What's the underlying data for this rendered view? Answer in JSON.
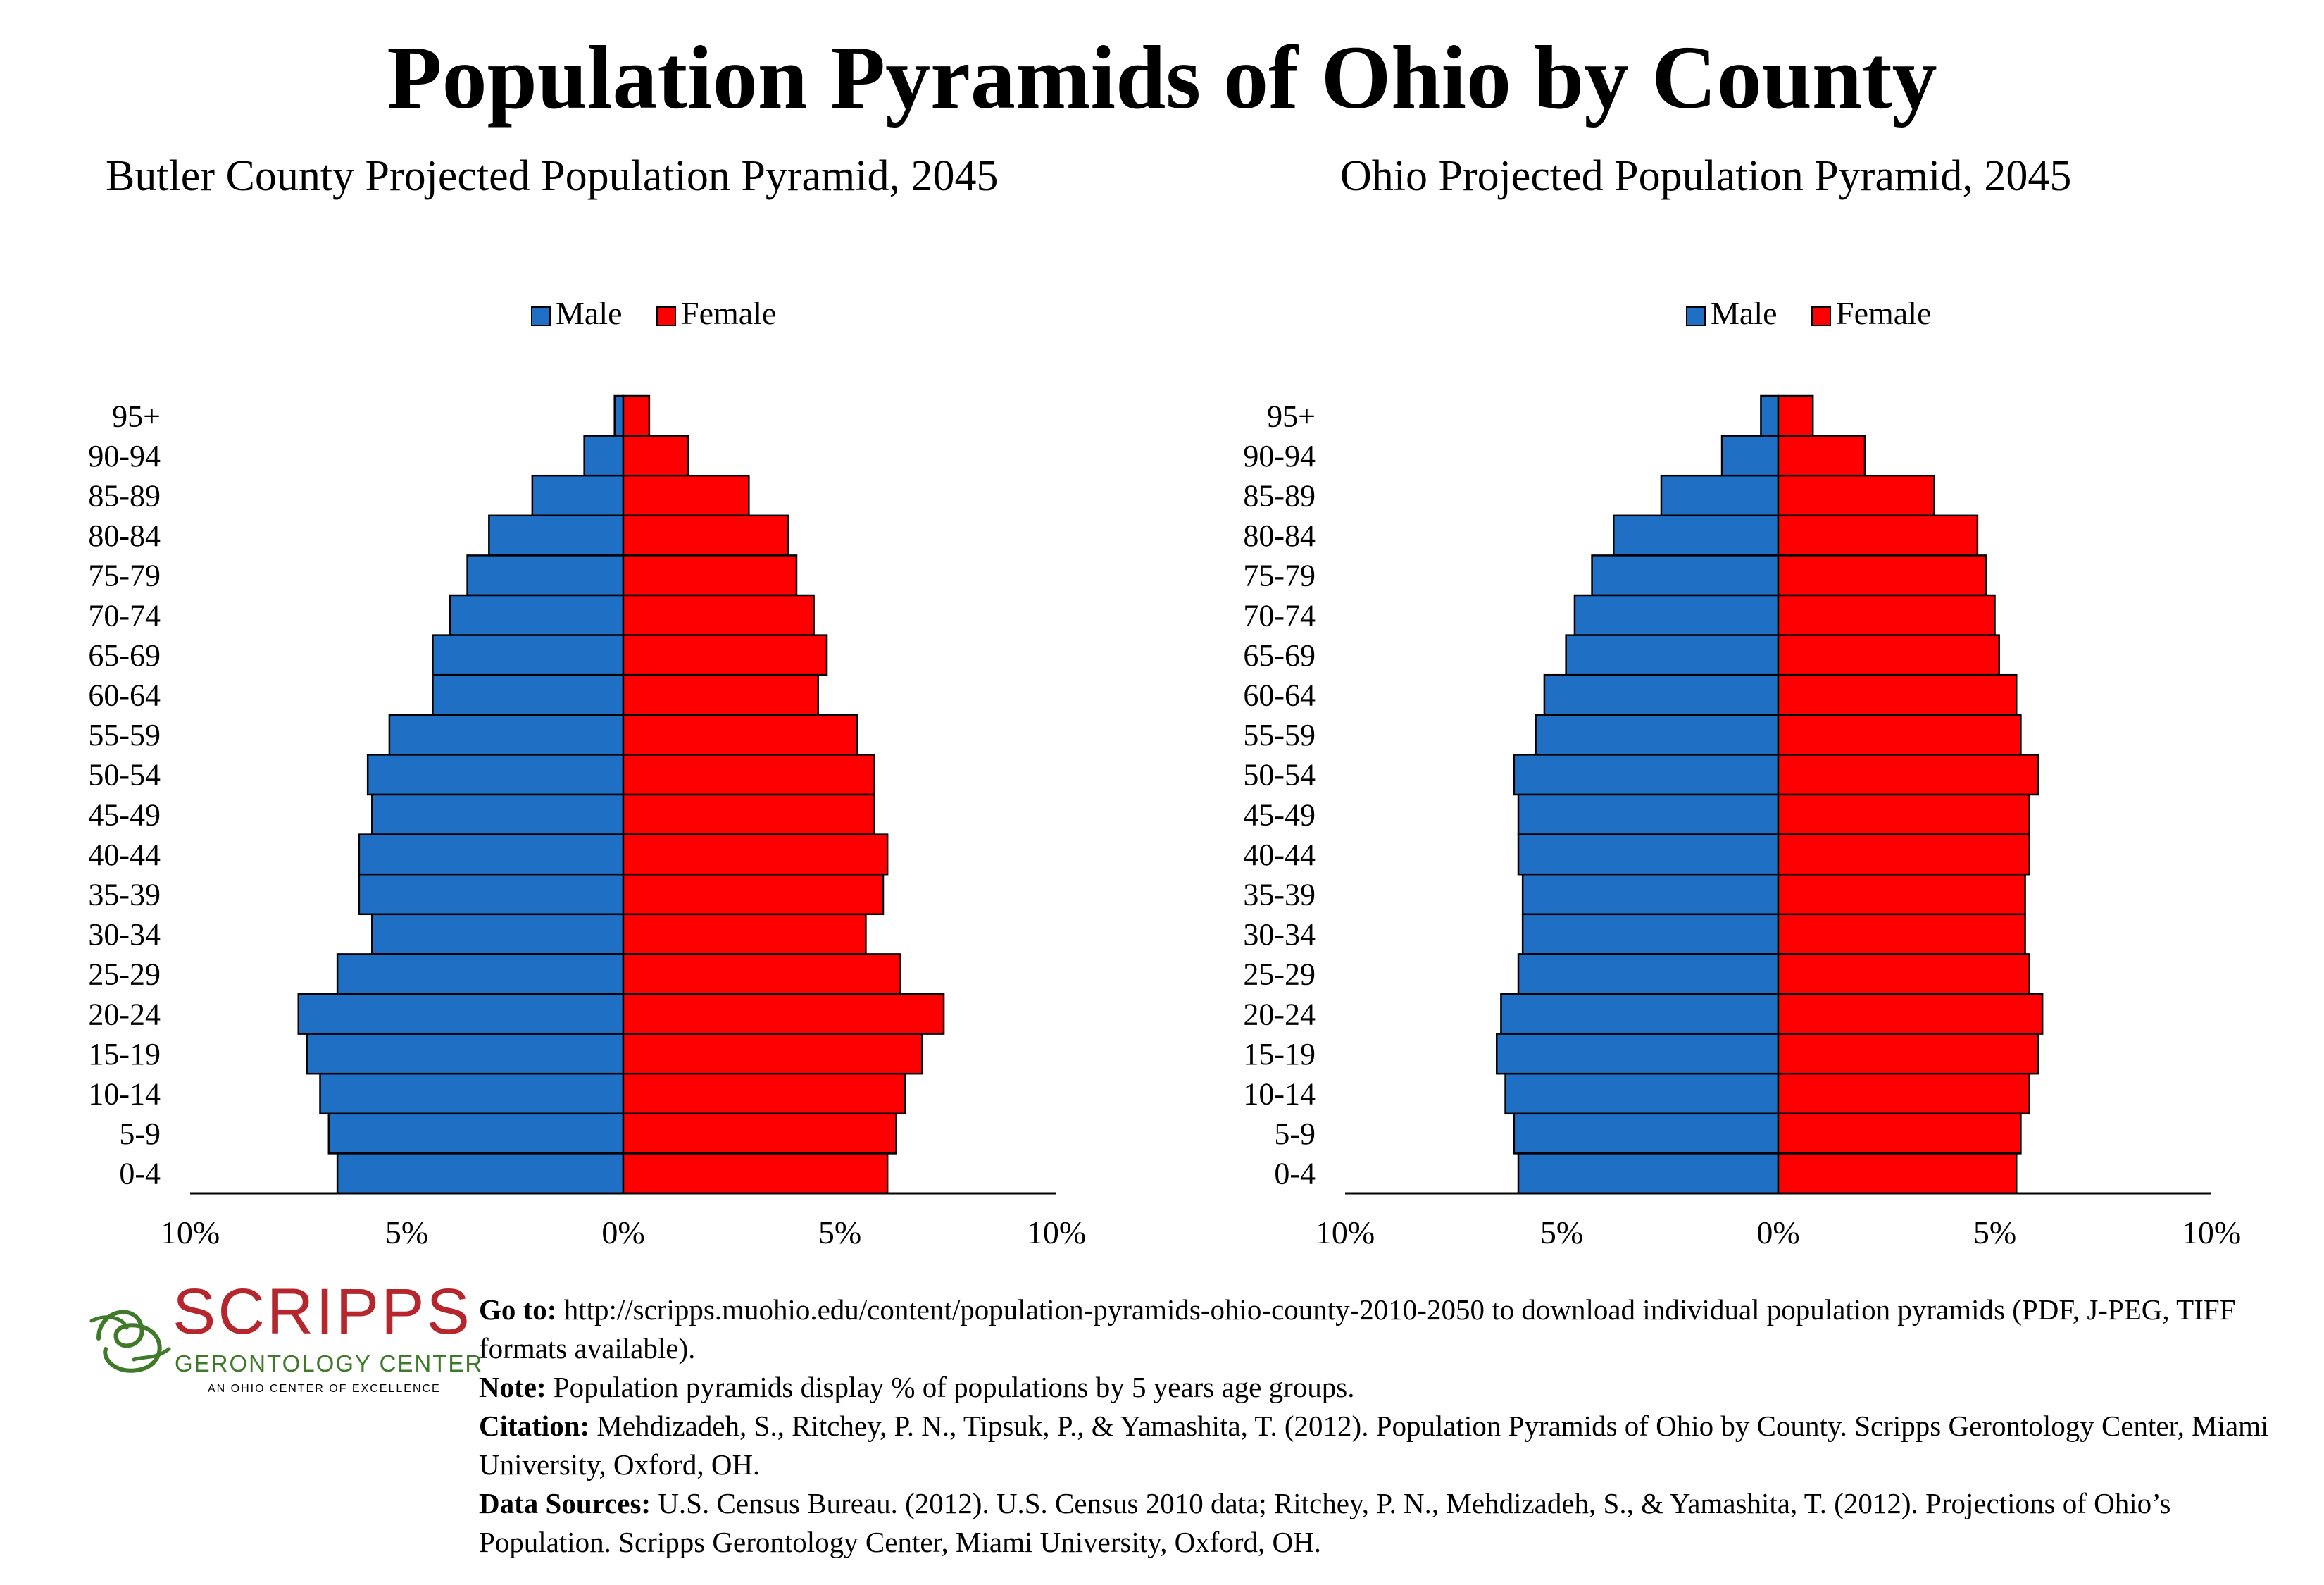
{
  "page": {
    "title": "Population Pyramids of Ohio by County"
  },
  "colors": {
    "male": "#1f6fc5",
    "female": "#ff0000",
    "outline": "#000000"
  },
  "chart_data": [
    {
      "type": "bar",
      "orientation": "horizontal-pyramid",
      "title": "Butler County Projected Population Pyramid, 2045",
      "legend": {
        "position": "top-center",
        "entries": [
          "Male",
          "Female"
        ]
      },
      "categories": [
        "95+",
        "90-94",
        "85-89",
        "80-84",
        "75-79",
        "70-74",
        "65-69",
        "60-64",
        "55-59",
        "50-54",
        "45-49",
        "40-44",
        "35-39",
        "30-34",
        "25-29",
        "20-24",
        "15-19",
        "10-14",
        "5-9",
        "0-4"
      ],
      "series": [
        {
          "name": "Male",
          "values": [
            0.2,
            0.9,
            2.1,
            3.1,
            3.6,
            4.0,
            4.4,
            4.4,
            5.4,
            5.9,
            5.8,
            6.1,
            6.1,
            5.8,
            6.6,
            7.5,
            7.3,
            7.0,
            6.8,
            6.6
          ]
        },
        {
          "name": "Female",
          "values": [
            0.6,
            1.5,
            2.9,
            3.8,
            4.0,
            4.4,
            4.7,
            4.5,
            5.4,
            5.8,
            5.8,
            6.1,
            6.0,
            5.6,
            6.4,
            7.4,
            6.9,
            6.5,
            6.3,
            6.1
          ]
        }
      ],
      "xlim": [
        -10,
        10
      ],
      "xticks": [
        "10%",
        "5%",
        "0%",
        "5%",
        "10%"
      ],
      "grid": false
    },
    {
      "type": "bar",
      "orientation": "horizontal-pyramid",
      "title": "Ohio Projected Population Pyramid, 2045",
      "legend": {
        "position": "top-center",
        "entries": [
          "Male",
          "Female"
        ]
      },
      "categories": [
        "95+",
        "90-94",
        "85-89",
        "80-84",
        "75-79",
        "70-74",
        "65-69",
        "60-64",
        "55-59",
        "50-54",
        "45-49",
        "40-44",
        "35-39",
        "30-34",
        "25-29",
        "20-24",
        "15-19",
        "10-14",
        "5-9",
        "0-4"
      ],
      "series": [
        {
          "name": "Male",
          "values": [
            0.4,
            1.3,
            2.7,
            3.8,
            4.3,
            4.7,
            4.9,
            5.4,
            5.6,
            6.1,
            6.0,
            6.0,
            5.9,
            5.9,
            6.0,
            6.4,
            6.5,
            6.3,
            6.1,
            6.0
          ]
        },
        {
          "name": "Female",
          "values": [
            0.8,
            2.0,
            3.6,
            4.6,
            4.8,
            5.0,
            5.1,
            5.5,
            5.6,
            6.0,
            5.8,
            5.8,
            5.7,
            5.7,
            5.8,
            6.1,
            6.0,
            5.8,
            5.6,
            5.5
          ]
        }
      ],
      "xlim": [
        -10,
        10
      ],
      "xticks": [
        "10%",
        "5%",
        "0%",
        "5%",
        "10%"
      ],
      "grid": false
    }
  ],
  "logo": {
    "wordmark": "SCRIPPS",
    "subtitle": "GERONTOLOGY CENTER",
    "tagline": "AN OHIO CENTER OF EXCELLENCE"
  },
  "notes": [
    {
      "label": "Go to:",
      "text": " http://scripps.muohio.edu/content/population-pyramids-ohio-county-2010-2050 to download individual population pyramids (PDF, J-PEG, TIFF formats available)."
    },
    {
      "label": "Note:",
      "text": " Population pyramids display % of populations by 5 years age groups."
    },
    {
      "label": "Citation:",
      "text": " Mehdizadeh, S., Ritchey, P. N., Tipsuk, P., & Yamashita, T. (2012). Population Pyramids of Ohio by County. Scripps Gerontology Center, Miami University, Oxford, OH."
    },
    {
      "label": "Data Sources:",
      "text": " U.S. Census Bureau. (2012). U.S. Census 2010 data; Ritchey, P. N., Mehdizadeh, S., & Yamashita, T. (2012). Projections of Ohio’s Population. Scripps Gerontology Center, Miami University, Oxford, OH."
    }
  ]
}
